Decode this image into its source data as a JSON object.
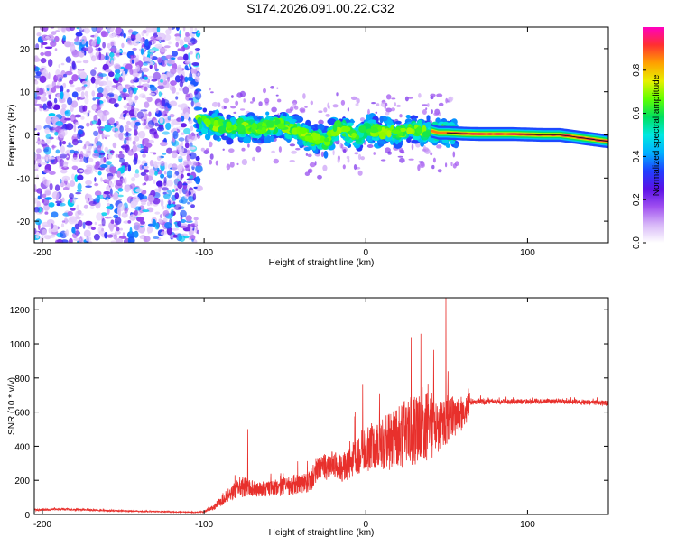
{
  "page": {
    "title": "S174.2026.091.00.22.C32"
  },
  "colors": {
    "snr_line": "#e8302c",
    "axis": "#000000",
    "speckle_light": "#e0ccf5",
    "speckle_mid": "#b080ee",
    "speckle_dark": "#5a10e6",
    "strong_core": "#f04040"
  },
  "chart_data": [
    {
      "type": "heatmap",
      "title": "S174.2026.091.00.22.C32",
      "xlabel": "Height of straight line (km)",
      "ylabel": "Frequency (Hz)",
      "xlim": [
        -205,
        150
      ],
      "ylim": [
        -25,
        25
      ],
      "xticks": [
        -200,
        -100,
        0,
        100
      ],
      "yticks": [
        -20,
        -10,
        0,
        10,
        20
      ],
      "xtick_labels": [
        "-200",
        "-100",
        "0",
        "100"
      ],
      "ytick_labels": [
        "-20",
        "-10",
        "0",
        "10",
        "20"
      ],
      "colorbar": {
        "label": "Normalized spectral amplitude",
        "range": [
          0,
          1
        ],
        "ticks": [
          0.0,
          0.2,
          0.4,
          0.6,
          0.8
        ],
        "tick_labels": [
          "0.0",
          "0.2",
          "0.4",
          "0.6",
          "0.8"
        ],
        "colormap": [
          "#ffffff",
          "#d8b8f8",
          "#a050f0",
          "#5a10e6",
          "#2040ff",
          "#00b0ff",
          "#00e8e0",
          "#00e060",
          "#60ff00",
          "#e8f000",
          "#ffa000",
          "#ff3030",
          "#ff00c0"
        ]
      },
      "regions": {
        "noise_range_km": [
          -205,
          -103
        ],
        "noise_amplitude": 0.15,
        "onset_km": -103,
        "track_end_km": 150,
        "strong_signal_range_km": [
          55,
          150
        ],
        "strong_signal_amplitude": 0.8
      },
      "ridge_frequency": {
        "x": [
          -105,
          -95,
          -85,
          -75,
          -65,
          -55,
          -45,
          -35,
          -25,
          -20,
          -15,
          -10,
          -5,
          0,
          5,
          10,
          15,
          20,
          25,
          30,
          35,
          40,
          45,
          50,
          60,
          70,
          80,
          90,
          100,
          110,
          120,
          130,
          140,
          150
        ],
        "y": [
          3.5,
          2.5,
          1.5,
          2.0,
          1.5,
          2.5,
          1.5,
          -0.5,
          -1.5,
          0.5,
          2.0,
          0.5,
          -0.5,
          1.5,
          1.0,
          0.5,
          1.0,
          0.5,
          1.0,
          1.5,
          0.5,
          1.0,
          0.5,
          0.5,
          0.3,
          0.2,
          0.2,
          0.2,
          0.1,
          0.0,
          0.0,
          -0.5,
          -1.0,
          -1.5
        ]
      }
    },
    {
      "type": "line",
      "xlabel": "Height of straight line (km)",
      "ylabel": "SNR (10 * v/v)",
      "xlim": [
        -205,
        150
      ],
      "ylim": [
        0,
        1270
      ],
      "xticks": [
        -200,
        -100,
        0,
        100
      ],
      "yticks": [
        0,
        200,
        400,
        600,
        800,
        1000,
        1200
      ],
      "xtick_labels": [
        "-200",
        "-100",
        "0",
        "100"
      ],
      "ytick_labels": [
        "0",
        "200",
        "400",
        "600",
        "800",
        "1000",
        "1200"
      ],
      "series": [
        {
          "name": "SNR",
          "x": [
            -205,
            -190,
            -180,
            -160,
            -140,
            -120,
            -105,
            -100,
            -95,
            -90,
            -85,
            -80,
            -76,
            -72,
            -65,
            -55,
            -45,
            -35,
            -30,
            -25,
            -20,
            -15,
            -10,
            -5,
            0,
            5,
            10,
            15,
            20,
            25,
            30,
            35,
            40,
            45,
            50,
            55,
            60,
            64,
            65,
            80,
            100,
            120,
            140,
            150
          ],
          "base": [
            25,
            30,
            28,
            22,
            18,
            15,
            12,
            15,
            35,
            70,
            110,
            140,
            160,
            150,
            145,
            150,
            165,
            180,
            260,
            270,
            290,
            260,
            290,
            330,
            360,
            390,
            400,
            420,
            440,
            450,
            480,
            490,
            500,
            520,
            540,
            560,
            580,
            640,
            660,
            660,
            660,
            660,
            655,
            650
          ],
          "noise": [
            12,
            12,
            10,
            8,
            6,
            6,
            5,
            10,
            30,
            55,
            80,
            110,
            140,
            100,
            90,
            100,
            120,
            130,
            150,
            160,
            170,
            160,
            200,
            230,
            260,
            290,
            320,
            360,
            380,
            400,
            420,
            400,
            400,
            350,
            300,
            250,
            200,
            150,
            40,
            30,
            30,
            30,
            30,
            30
          ],
          "peaks": [
            {
              "x": -73.0,
              "y": 500
            },
            {
              "x": -2.0,
              "y": 760
            },
            {
              "x": 28.0,
              "y": 1040
            },
            {
              "x": 34.0,
              "y": 1060
            },
            {
              "x": 49.5,
              "y": 1270
            }
          ]
        }
      ]
    }
  ]
}
